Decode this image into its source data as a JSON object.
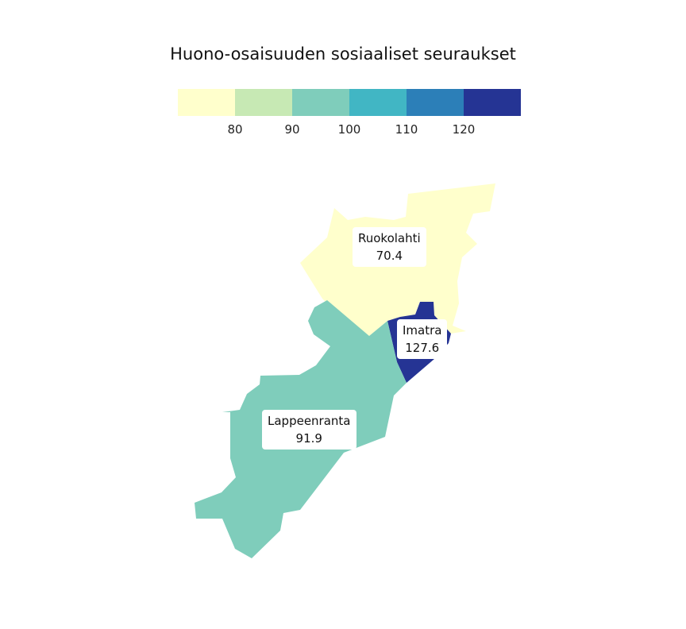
{
  "title": "Huono-osaisuuden sosiaaliset seuraukset",
  "legend": {
    "colors": [
      "#ffffcc",
      "#c7e9b4",
      "#7fcdbb",
      "#41b6c4",
      "#2c7fb8",
      "#253494"
    ],
    "ticks": [
      "80",
      "90",
      "100",
      "110",
      "120"
    ]
  },
  "regions": [
    {
      "name": "Ruokolahti",
      "value": "70.4",
      "color": "#ffffcc"
    },
    {
      "name": "Imatra",
      "value": "127.6",
      "color": "#253494"
    },
    {
      "name": "Lappeenranta",
      "value": "91.9",
      "color": "#7fcdbb"
    }
  ]
}
